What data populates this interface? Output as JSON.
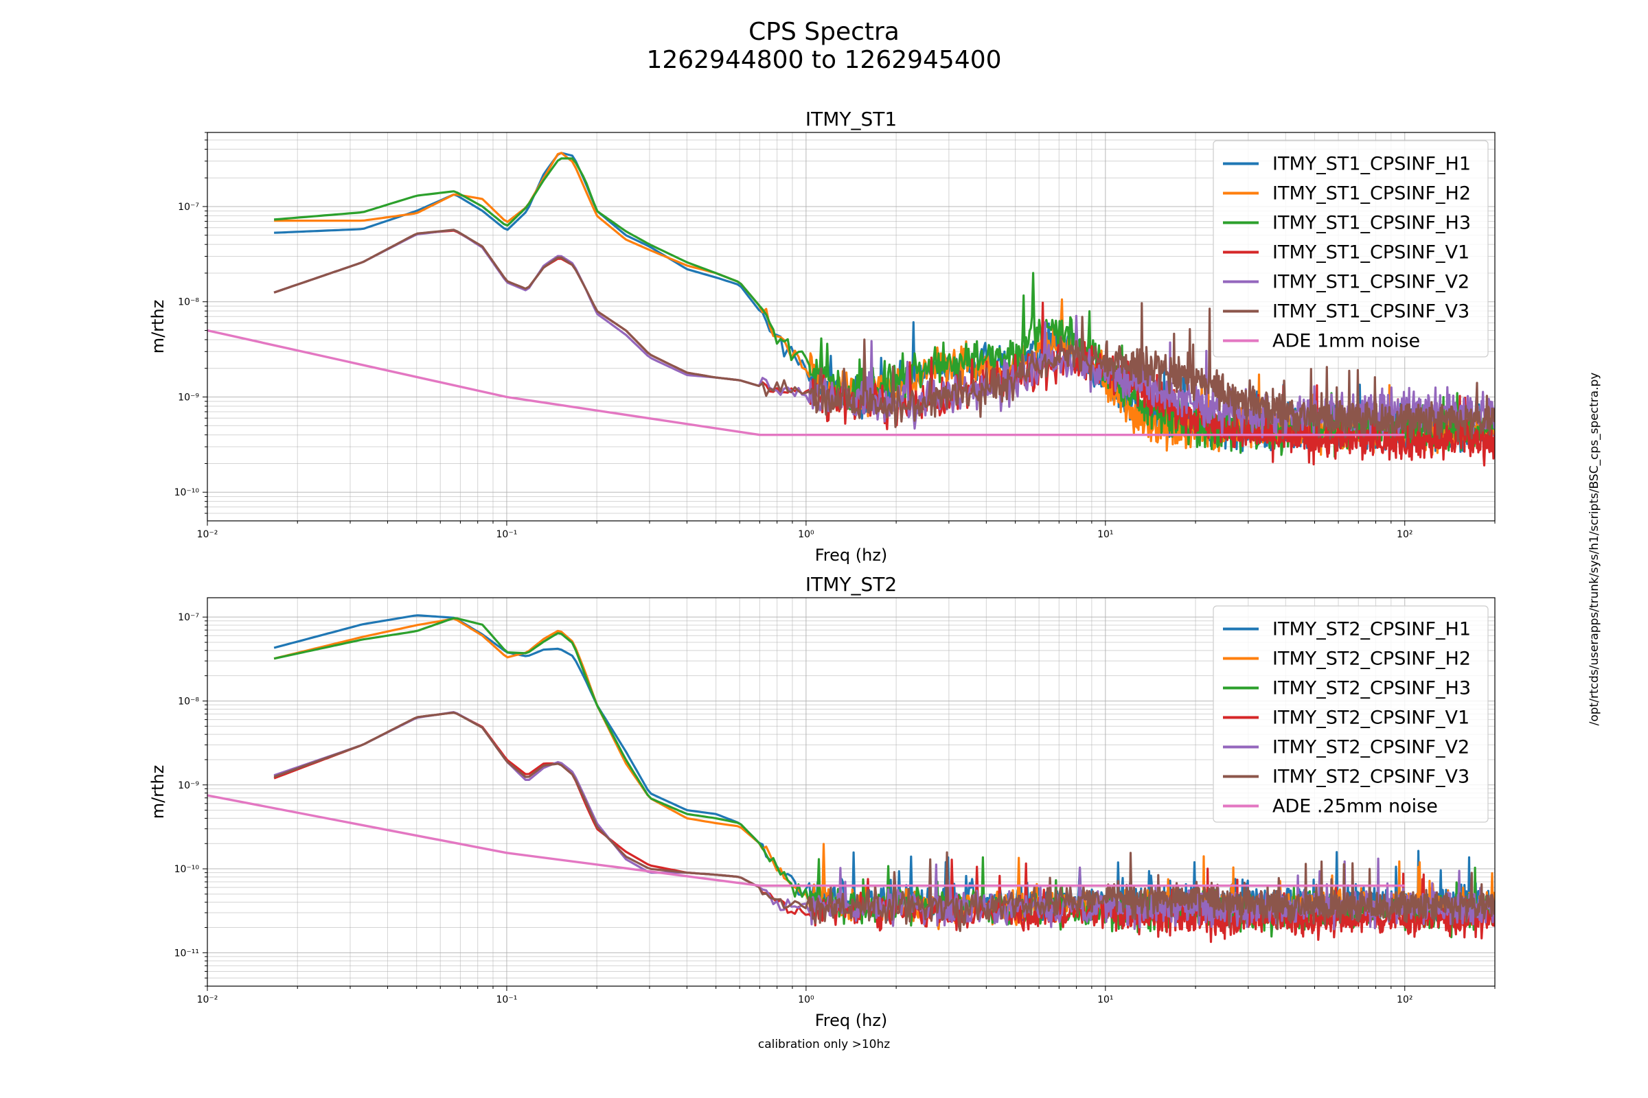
{
  "figure": {
    "title_line1": "CPS Spectra",
    "title_line2": "1262944800 to 1262945400",
    "side_note": "/opt/rtcds/userapps/trunk/sys/h1/scripts/BSC_cps_spectra.py",
    "footnote": "calibration only >10hz"
  },
  "chart_data": [
    {
      "type": "line",
      "title": "ITMY_ST1",
      "xlabel": "Freq (hz)",
      "ylabel": "m/rthz",
      "xscale": "log",
      "yscale": "log",
      "xlim": [
        0.01,
        200
      ],
      "ylim": [
        5e-11,
        6e-07
      ],
      "x_ticks": [
        0.01,
        0.1,
        1,
        10,
        100
      ],
      "x_tick_labels": [
        "10⁻²",
        "10⁻¹",
        "10⁰",
        "10¹",
        "10²"
      ],
      "y_ticks": [
        1e-10,
        1e-09,
        1e-08,
        1e-07
      ],
      "y_tick_labels": [
        "10⁻¹⁰",
        "10⁻⁹",
        "10⁻⁸",
        "10⁻⁷"
      ],
      "grid": true,
      "legend_position": "top-right",
      "series": [
        {
          "name": "ITMY_ST1_CPSINF_H1",
          "color": "#1f77b4",
          "noisy": true,
          "x": [
            0.0167,
            0.033,
            0.05,
            0.067,
            0.083,
            0.1,
            0.117,
            0.133,
            0.15,
            0.167,
            0.183,
            0.2,
            0.25,
            0.3,
            0.4,
            0.5,
            0.6,
            0.7,
            0.8,
            1.0,
            1.2,
            1.5,
            2,
            2.5,
            3,
            4,
            5,
            6,
            7,
            8,
            10,
            12,
            15,
            20,
            30,
            50,
            100,
            200
          ],
          "y": [
            5.3e-08,
            5.8e-08,
            9e-08,
            1.35e-07,
            9e-08,
            5.6e-08,
            9e-08,
            2.2e-07,
            3.7e-07,
            3.4e-07,
            1.8e-07,
            9e-08,
            5e-08,
            3.8e-08,
            2.2e-08,
            1.8e-08,
            1.5e-08,
            8e-09,
            4e-09,
            2e-09,
            1.2e-09,
            1e-09,
            1.3e-09,
            1.8e-09,
            2e-09,
            2.2e-09,
            2e-09,
            3.5e-09,
            3.5e-09,
            3e-09,
            1.5e-09,
            9e-10,
            6e-10,
            5e-10,
            4.5e-10,
            4.5e-10,
            4.5e-10,
            4.5e-10
          ]
        },
        {
          "name": "ITMY_ST1_CPSINF_H2",
          "color": "#ff7f0e",
          "noisy": true,
          "x": [
            0.0167,
            0.033,
            0.05,
            0.067,
            0.083,
            0.1,
            0.117,
            0.133,
            0.15,
            0.167,
            0.183,
            0.2,
            0.25,
            0.3,
            0.4,
            0.5,
            0.6,
            0.7,
            0.8,
            1.0,
            1.2,
            1.5,
            2,
            2.5,
            3,
            4,
            5,
            6,
            7,
            8,
            10,
            12,
            15,
            20,
            30,
            50,
            100,
            200
          ],
          "y": [
            7.1e-08,
            7.1e-08,
            8.5e-08,
            1.35e-07,
            1.2e-07,
            6.8e-08,
            1e-07,
            2e-07,
            3.8e-07,
            2.9e-07,
            1.5e-07,
            8e-08,
            4.5e-08,
            3.5e-08,
            2.4e-08,
            2e-08,
            1.6e-08,
            9e-09,
            4.5e-09,
            2e-09,
            1.2e-09,
            1e-09,
            1.3e-09,
            1.8e-09,
            2.1e-09,
            2.2e-09,
            2e-09,
            3.5e-09,
            3.4e-09,
            3e-09,
            1.4e-09,
            7e-10,
            5e-10,
            4.5e-10,
            4.5e-10,
            4.5e-10,
            4.5e-10,
            4.5e-10
          ]
        },
        {
          "name": "ITMY_ST1_CPSINF_H3",
          "color": "#2ca02c",
          "noisy": true,
          "x": [
            0.0167,
            0.033,
            0.05,
            0.067,
            0.083,
            0.1,
            0.117,
            0.133,
            0.15,
            0.167,
            0.183,
            0.2,
            0.25,
            0.3,
            0.4,
            0.5,
            0.6,
            0.7,
            0.8,
            1.0,
            1.2,
            1.5,
            2,
            2.5,
            3,
            4,
            5,
            6,
            7,
            8,
            10,
            12,
            15,
            20,
            30,
            50,
            100,
            200
          ],
          "y": [
            7.3e-08,
            8.7e-08,
            1.3e-07,
            1.45e-07,
            1e-07,
            6.2e-08,
            1e-07,
            1.9e-07,
            3.2e-07,
            3.2e-07,
            1.9e-07,
            9e-08,
            5.5e-08,
            4e-08,
            2.6e-08,
            2e-08,
            1.6e-08,
            9e-09,
            4.5e-09,
            2.2e-09,
            1.3e-09,
            1.1e-09,
            1.4e-09,
            2e-09,
            2.4e-09,
            2.6e-09,
            2.5e-09,
            5e-09,
            5e-09,
            4e-09,
            2e-09,
            1e-09,
            7e-10,
            5e-10,
            4.5e-10,
            4.5e-10,
            4.5e-10,
            4.5e-10
          ]
        },
        {
          "name": "ITMY_ST1_CPSINF_V1",
          "color": "#d62728",
          "noisy": true,
          "x": [
            0.0167,
            0.033,
            0.05,
            0.067,
            0.083,
            0.1,
            0.117,
            0.133,
            0.15,
            0.167,
            0.183,
            0.2,
            0.25,
            0.3,
            0.4,
            0.5,
            0.6,
            0.7,
            0.8,
            1.0,
            1.2,
            1.5,
            2,
            3,
            5,
            7,
            10,
            15,
            20,
            30,
            50,
            100,
            200
          ],
          "y": [
            1.25e-08,
            2.6e-08,
            5.2e-08,
            5.6e-08,
            3.8e-08,
            1.65e-08,
            1.35e-08,
            2.3e-08,
            2.9e-08,
            2.4e-08,
            1.4e-08,
            8e-09,
            5e-09,
            2.8e-09,
            1.8e-09,
            1.6e-09,
            1.5e-09,
            1.3e-09,
            1.2e-09,
            1.1e-09,
            1e-09,
            9e-10,
            8e-10,
            1e-09,
            1.5e-09,
            2.5e-09,
            2e-09,
            1e-09,
            6e-10,
            4e-10,
            3.5e-10,
            3.5e-10,
            3.5e-10
          ]
        },
        {
          "name": "ITMY_ST1_CPSINF_V2",
          "color": "#9467bd",
          "noisy": true,
          "x": [
            0.0167,
            0.033,
            0.05,
            0.067,
            0.083,
            0.1,
            0.117,
            0.133,
            0.15,
            0.167,
            0.183,
            0.2,
            0.25,
            0.3,
            0.4,
            0.5,
            0.6,
            0.7,
            0.8,
            1.0,
            1.2,
            1.5,
            2,
            3,
            5,
            7,
            10,
            15,
            20,
            30,
            50,
            100,
            200
          ],
          "y": [
            1.25e-08,
            2.6e-08,
            5.1e-08,
            5.7e-08,
            3.7e-08,
            1.6e-08,
            1.3e-08,
            2.4e-08,
            3.1e-08,
            2.5e-08,
            1.4e-08,
            7.5e-09,
            4.5e-09,
            2.6e-09,
            1.7e-09,
            1.6e-09,
            1.5e-09,
            1.3e-09,
            1.2e-09,
            1.1e-09,
            1e-09,
            9e-10,
            8e-10,
            1e-09,
            1.5e-09,
            2.5e-09,
            2e-09,
            1.2e-09,
            8e-10,
            6e-10,
            7e-10,
            7e-10,
            7e-10
          ]
        },
        {
          "name": "ITMY_ST1_CPSINF_V3",
          "color": "#8c564b",
          "noisy": true,
          "x": [
            0.0167,
            0.033,
            0.05,
            0.067,
            0.083,
            0.1,
            0.117,
            0.133,
            0.15,
            0.167,
            0.183,
            0.2,
            0.25,
            0.3,
            0.4,
            0.5,
            0.6,
            0.7,
            0.8,
            1.0,
            1.2,
            1.5,
            2,
            3,
            5,
            7,
            10,
            15,
            20,
            30,
            50,
            100,
            200
          ],
          "y": [
            1.25e-08,
            2.6e-08,
            5.2e-08,
            5.7e-08,
            3.8e-08,
            1.65e-08,
            1.35e-08,
            2.3e-08,
            3e-08,
            2.4e-08,
            1.4e-08,
            8e-09,
            5e-09,
            2.8e-09,
            1.8e-09,
            1.6e-09,
            1.5e-09,
            1.3e-09,
            1.2e-09,
            1.1e-09,
            1e-09,
            9e-10,
            8e-10,
            1e-09,
            1.6e-09,
            2.8e-09,
            2.4e-09,
            2e-09,
            1.5e-09,
            9e-10,
            6e-10,
            5.5e-10,
            5.5e-10
          ]
        },
        {
          "name": "ADE 1mm noise",
          "color": "#e377c2",
          "noisy": false,
          "x": [
            0.01,
            0.1,
            0.7,
            100
          ],
          "y": [
            5e-09,
            1e-09,
            4e-10,
            4e-10
          ]
        }
      ]
    },
    {
      "type": "line",
      "title": "ITMY_ST2",
      "xlabel": "Freq (hz)",
      "ylabel": "m/rthz",
      "xscale": "log",
      "yscale": "log",
      "xlim": [
        0.01,
        200
      ],
      "ylim": [
        4e-12,
        1.7e-07
      ],
      "x_ticks": [
        0.01,
        0.1,
        1,
        10,
        100
      ],
      "x_tick_labels": [
        "10⁻²",
        "10⁻¹",
        "10⁰",
        "10¹",
        "10²"
      ],
      "y_ticks": [
        1e-11,
        1e-10,
        1e-09,
        1e-08,
        1e-07
      ],
      "y_tick_labels": [
        "10⁻¹¹",
        "10⁻¹⁰",
        "10⁻⁹",
        "10⁻⁸",
        "10⁻⁷"
      ],
      "grid": true,
      "legend_position": "top-right",
      "series": [
        {
          "name": "ITMY_ST2_CPSINF_H1",
          "color": "#1f77b4",
          "noisy": true,
          "x": [
            0.0167,
            0.033,
            0.05,
            0.067,
            0.083,
            0.1,
            0.117,
            0.133,
            0.15,
            0.167,
            0.183,
            0.2,
            0.25,
            0.3,
            0.4,
            0.5,
            0.6,
            0.7,
            0.8,
            1.0,
            1.5,
            2,
            3,
            5,
            10,
            20,
            50,
            100,
            200
          ],
          "y": [
            4.3e-08,
            8.2e-08,
            1.05e-07,
            9.8e-08,
            6.2e-08,
            3.8e-08,
            3.4e-08,
            4.1e-08,
            4.2e-08,
            3.4e-08,
            1.8e-08,
            9e-09,
            2.5e-09,
            8e-10,
            5e-10,
            4.5e-10,
            3.5e-10,
            2e-10,
            1e-10,
            5e-11,
            4e-11,
            4e-11,
            4e-11,
            4e-11,
            4e-11,
            4e-11,
            4e-11,
            4e-11,
            4e-11
          ]
        },
        {
          "name": "ITMY_ST2_CPSINF_H2",
          "color": "#ff7f0e",
          "noisy": true,
          "x": [
            0.0167,
            0.033,
            0.05,
            0.067,
            0.083,
            0.1,
            0.117,
            0.133,
            0.15,
            0.167,
            0.183,
            0.2,
            0.25,
            0.3,
            0.4,
            0.5,
            0.6,
            0.7,
            0.8,
            1.0,
            1.5,
            2,
            3,
            5,
            10,
            20,
            50,
            100,
            200
          ],
          "y": [
            3.2e-08,
            5.8e-08,
            8e-08,
            9.6e-08,
            6e-08,
            3.3e-08,
            3.8e-08,
            5.5e-08,
            7e-08,
            5e-08,
            2.2e-08,
            9e-09,
            1.8e-09,
            7e-10,
            4e-10,
            3.5e-10,
            3.2e-10,
            2e-10,
            1e-10,
            4.5e-11,
            3.5e-11,
            3.5e-11,
            3.5e-11,
            3.5e-11,
            3.5e-11,
            3.5e-11,
            3.5e-11,
            3.5e-11,
            3.5e-11
          ]
        },
        {
          "name": "ITMY_ST2_CPSINF_H3",
          "color": "#2ca02c",
          "noisy": true,
          "x": [
            0.0167,
            0.033,
            0.05,
            0.067,
            0.083,
            0.1,
            0.117,
            0.133,
            0.15,
            0.167,
            0.183,
            0.2,
            0.25,
            0.3,
            0.4,
            0.5,
            0.6,
            0.7,
            0.8,
            1.0,
            1.5,
            2,
            3,
            5,
            10,
            20,
            50,
            100,
            200
          ],
          "y": [
            3.2e-08,
            5.4e-08,
            6.8e-08,
            9.8e-08,
            8.1e-08,
            3.8e-08,
            3.7e-08,
            5.1e-08,
            6.6e-08,
            4.8e-08,
            2e-08,
            9e-09,
            2e-09,
            7e-10,
            4.5e-10,
            4e-10,
            3.5e-10,
            2e-10,
            1e-10,
            4.5e-11,
            3.5e-11,
            3.5e-11,
            3.5e-11,
            3.5e-11,
            3e-11,
            3e-11,
            3e-11,
            3e-11,
            3e-11
          ]
        },
        {
          "name": "ITMY_ST2_CPSINF_V1",
          "color": "#d62728",
          "noisy": true,
          "x": [
            0.0167,
            0.033,
            0.05,
            0.067,
            0.083,
            0.1,
            0.117,
            0.133,
            0.15,
            0.167,
            0.183,
            0.2,
            0.25,
            0.3,
            0.4,
            0.5,
            0.6,
            0.7,
            0.8,
            1.0,
            1.5,
            2,
            3,
            5,
            10,
            20,
            50,
            100,
            200
          ],
          "y": [
            1.2e-09,
            3e-09,
            6.4e-09,
            7.3e-09,
            4.9e-09,
            2e-09,
            1.3e-09,
            1.8e-09,
            1.8e-09,
            1.3e-09,
            6e-10,
            3e-10,
            1.6e-10,
            1.1e-10,
            9e-11,
            8.5e-11,
            8e-11,
            6e-11,
            4e-11,
            3e-11,
            3e-11,
            3e-11,
            3e-11,
            3e-11,
            3e-11,
            2.5e-11,
            2.5e-11,
            2.5e-11,
            2.5e-11
          ]
        },
        {
          "name": "ITMY_ST2_CPSINF_V2",
          "color": "#9467bd",
          "noisy": true,
          "x": [
            0.0167,
            0.033,
            0.05,
            0.067,
            0.083,
            0.1,
            0.117,
            0.133,
            0.15,
            0.167,
            0.183,
            0.2,
            0.25,
            0.3,
            0.4,
            0.5,
            0.6,
            0.7,
            0.8,
            1.0,
            1.5,
            2,
            3,
            5,
            10,
            20,
            50,
            100,
            200
          ],
          "y": [
            1.3e-09,
            3e-09,
            6.3e-09,
            7.4e-09,
            4.8e-09,
            1.9e-09,
            1.1e-09,
            1.6e-09,
            1.9e-09,
            1.4e-09,
            7e-10,
            3.5e-10,
            1.3e-10,
            9e-11,
            9e-11,
            8.5e-11,
            8e-11,
            6e-11,
            4e-11,
            3.5e-11,
            3.5e-11,
            3.5e-11,
            3.5e-11,
            3.5e-11,
            3.5e-11,
            3.5e-11,
            3.5e-11,
            3.5e-11,
            3.5e-11
          ]
        },
        {
          "name": "ITMY_ST2_CPSINF_V3",
          "color": "#8c564b",
          "noisy": true,
          "x": [
            0.0167,
            0.033,
            0.05,
            0.067,
            0.083,
            0.1,
            0.117,
            0.133,
            0.15,
            0.167,
            0.183,
            0.2,
            0.25,
            0.3,
            0.4,
            0.5,
            0.6,
            0.7,
            0.8,
            1.0,
            1.5,
            2,
            3,
            5,
            10,
            20,
            50,
            100,
            200
          ],
          "y": [
            1.25e-09,
            3e-09,
            6.4e-09,
            7.3e-09,
            4.8e-09,
            1.9e-09,
            1.2e-09,
            1.7e-09,
            1.8e-09,
            1.3e-09,
            6.5e-10,
            3.2e-10,
            1.4e-10,
            1e-10,
            9e-11,
            8.5e-11,
            8e-11,
            6e-11,
            4e-11,
            3.5e-11,
            3.5e-11,
            3.5e-11,
            3.5e-11,
            3.8e-11,
            4.5e-11,
            4.5e-11,
            3.5e-11,
            3.5e-11,
            3.5e-11
          ]
        },
        {
          "name": "ADE .25mm noise",
          "color": "#e377c2",
          "noisy": false,
          "x": [
            0.01,
            0.1,
            0.7,
            100
          ],
          "y": [
            7.5e-10,
            1.55e-10,
            6.3e-11,
            6.3e-11
          ]
        }
      ]
    }
  ]
}
